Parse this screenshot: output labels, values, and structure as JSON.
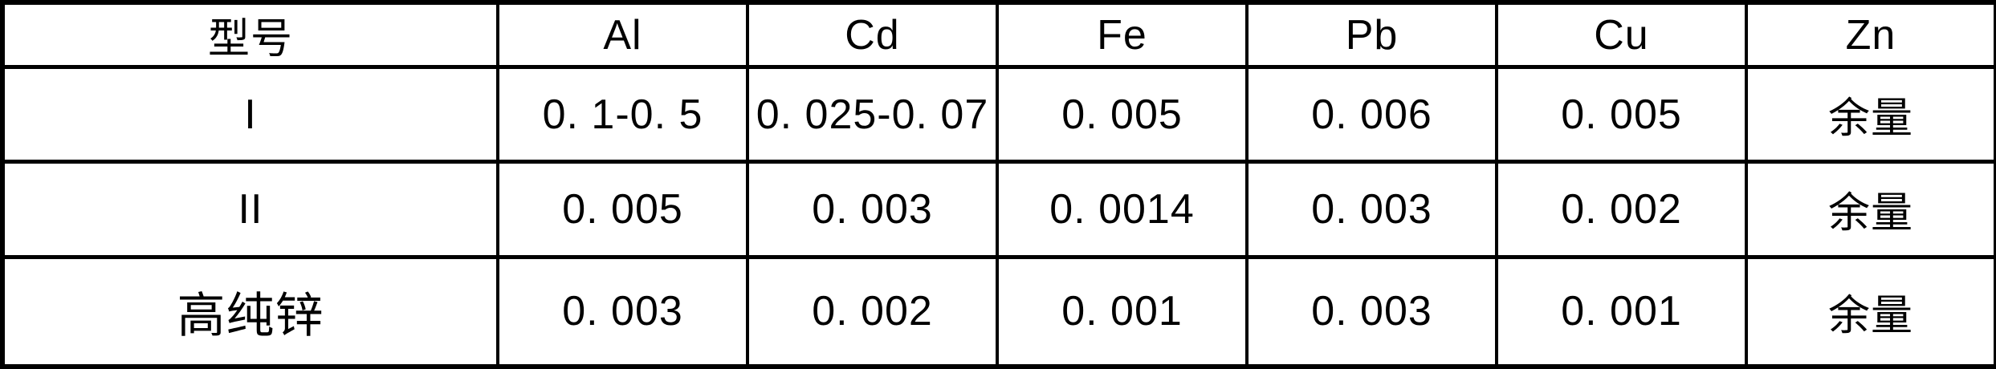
{
  "chart_data": {
    "type": "table",
    "columns": [
      "型号",
      "Al",
      "Cd",
      "Fe",
      "Pb",
      "Cu",
      "Zn"
    ],
    "rows": [
      [
        "I",
        "0. 1-0. 5",
        "0. 025-0. 07",
        "0. 005",
        "0. 006",
        "0. 005",
        "余量"
      ],
      [
        "II",
        "0. 005",
        "0. 003",
        "0. 0014",
        "0. 003",
        "0. 002",
        "余量"
      ],
      [
        "高纯锌",
        "0. 003",
        "0. 002",
        "0. 001",
        "0. 003",
        "0. 001",
        "余量"
      ]
    ],
    "layout": {
      "grid": "on",
      "header_row": true,
      "first_column_is_row_label": true
    },
    "colors": {
      "border": "#000000",
      "background": "#ffffff",
      "text": "#000000"
    }
  }
}
